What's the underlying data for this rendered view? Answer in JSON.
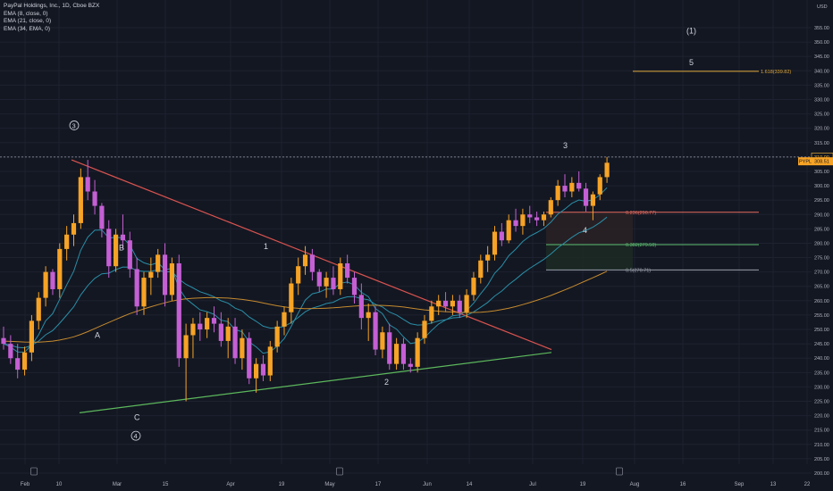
{
  "header": {
    "symbol_line": "PayPal Holdings, Inc., 1D, Cboe BZX",
    "indicators": [
      "EMA (8, close, 0)",
      "EMA (21, close, 0)",
      "EMA (34, EMA, 0)"
    ]
  },
  "price_axis": {
    "currency": "USD",
    "labels": [
      "355.00",
      "350.00",
      "345.00",
      "340.00",
      "335.00",
      "330.00",
      "325.00",
      "320.00",
      "315.00",
      "310.00",
      "305.00",
      "300.00",
      "295.00",
      "290.00",
      "285.00",
      "280.00",
      "275.00",
      "270.00",
      "265.00",
      "260.00",
      "255.00",
      "250.00",
      "245.00",
      "240.00",
      "235.00",
      "230.00",
      "225.00",
      "220.00",
      "215.00",
      "210.00",
      "205.00",
      "200.00"
    ],
    "marker_label": "310.00",
    "ticker_badge": "PYPL",
    "last_price": "308.51"
  },
  "time_axis": {
    "labels": [
      "Feb",
      "10",
      "Mar",
      "15",
      "Apr",
      "19",
      "May",
      "17",
      "Jun",
      "14",
      "Jul",
      "19",
      "Aug",
      "16",
      "Sep",
      "13",
      "22"
    ]
  },
  "annotations": {
    "wave_1_top": "(1)",
    "wave_5": "5",
    "wave_3": "3",
    "wave_4": "4",
    "wave_1": "1",
    "wave_2": "2",
    "wave_A": "A",
    "wave_B": "B",
    "wave_C": "C",
    "circled_3": "3",
    "circled_4": "4"
  },
  "fib_levels": [
    {
      "label": "1.618(339.82)",
      "color": "#e0a838"
    },
    {
      "label": "0.236(290.77)",
      "color": "#e56b5f"
    },
    {
      "label": "0.382(279.50)",
      "color": "#5fbf73"
    },
    {
      "label": "0.5(270.71)",
      "color": "#9aa0ab"
    }
  ],
  "colors": {
    "background": "#131722",
    "grid": "#1e2230",
    "up": "#f7a325",
    "down": "#c55fd4",
    "ema8": "#2a8ea6",
    "ema21": "#2a8ea6",
    "ema34": "#c58a2e",
    "resistance": "#d9534f",
    "support": "#5cb85c"
  },
  "chart_data": {
    "type": "candlestick",
    "ylim": [
      200,
      357
    ],
    "candles": [
      [
        247,
        251,
        243,
        245
      ],
      [
        245,
        248,
        238,
        240
      ],
      [
        240,
        245,
        233,
        236
      ],
      [
        236,
        244,
        234,
        242
      ],
      [
        242,
        255,
        239,
        253
      ],
      [
        253,
        263,
        250,
        261
      ],
      [
        261,
        272,
        258,
        270
      ],
      [
        270,
        271,
        262,
        264
      ],
      [
        264,
        280,
        261,
        278
      ],
      [
        278,
        286,
        274,
        283
      ],
      [
        283,
        290,
        279,
        287
      ],
      [
        287,
        306,
        285,
        303
      ],
      [
        303,
        309,
        295,
        298
      ],
      [
        298,
        302,
        290,
        293
      ],
      [
        293,
        294,
        282,
        285
      ],
      [
        285,
        288,
        268,
        272
      ],
      [
        272,
        285,
        270,
        283
      ],
      [
        283,
        290,
        278,
        281
      ],
      [
        281,
        284,
        268,
        271
      ],
      [
        271,
        275,
        255,
        258
      ],
      [
        258,
        270,
        255,
        268
      ],
      [
        268,
        275,
        262,
        270
      ],
      [
        270,
        278,
        268,
        276
      ],
      [
        276,
        280,
        258,
        262
      ],
      [
        262,
        275,
        260,
        273
      ],
      [
        273,
        276,
        237,
        240
      ],
      [
        240,
        252,
        225,
        248
      ],
      [
        248,
        254,
        240,
        252
      ],
      [
        252,
        256,
        246,
        250
      ],
      [
        250,
        256,
        247,
        254
      ],
      [
        254,
        258,
        249,
        252
      ],
      [
        252,
        256,
        244,
        246
      ],
      [
        246,
        254,
        240,
        251
      ],
      [
        251,
        254,
        238,
        240
      ],
      [
        240,
        250,
        236,
        247
      ],
      [
        247,
        249,
        231,
        233
      ],
      [
        233,
        240,
        228,
        238
      ],
      [
        238,
        241,
        232,
        234
      ],
      [
        234,
        246,
        232,
        244
      ],
      [
        244,
        253,
        242,
        251
      ],
      [
        251,
        258,
        248,
        256
      ],
      [
        256,
        268,
        252,
        266
      ],
      [
        266,
        275,
        262,
        272
      ],
      [
        272,
        279,
        269,
        276
      ],
      [
        276,
        278,
        267,
        270
      ],
      [
        270,
        271,
        263,
        265
      ],
      [
        265,
        270,
        261,
        268
      ],
      [
        268,
        272,
        262,
        264
      ],
      [
        264,
        275,
        262,
        273
      ],
      [
        273,
        276,
        266,
        268
      ],
      [
        268,
        270,
        259,
        262
      ],
      [
        262,
        266,
        250,
        254
      ],
      [
        254,
        259,
        246,
        256
      ],
      [
        256,
        258,
        241,
        243
      ],
      [
        243,
        251,
        240,
        249
      ],
      [
        249,
        252,
        236,
        238
      ],
      [
        238,
        247,
        236,
        245
      ],
      [
        245,
        247,
        236,
        238
      ],
      [
        238,
        240,
        235,
        237
      ],
      [
        237,
        249,
        235,
        247
      ],
      [
        247,
        255,
        245,
        253
      ],
      [
        253,
        260,
        252,
        258
      ],
      [
        258,
        262,
        255,
        260
      ],
      [
        260,
        263,
        256,
        258
      ],
      [
        258,
        262,
        255,
        260
      ],
      [
        260,
        262,
        254,
        256
      ],
      [
        256,
        264,
        254,
        262
      ],
      [
        262,
        270,
        260,
        268
      ],
      [
        268,
        276,
        266,
        274
      ],
      [
        274,
        279,
        270,
        276
      ],
      [
        276,
        286,
        274,
        284
      ],
      [
        284,
        287,
        279,
        281
      ],
      [
        281,
        290,
        280,
        288
      ],
      [
        288,
        292,
        284,
        286
      ],
      [
        286,
        292,
        283,
        290
      ],
      [
        290,
        293,
        287,
        289
      ],
      [
        289,
        291,
        286,
        288
      ],
      [
        288,
        291,
        286,
        290
      ],
      [
        290,
        296,
        289,
        295
      ],
      [
        295,
        302,
        293,
        300
      ],
      [
        300,
        304,
        296,
        298
      ],
      [
        298,
        303,
        296,
        301
      ],
      [
        301,
        305,
        298,
        299
      ],
      [
        299,
        301,
        291,
        293
      ],
      [
        293,
        298,
        288,
        297
      ],
      [
        297,
        304,
        295,
        303
      ],
      [
        303,
        310,
        301,
        308
      ]
    ]
  }
}
